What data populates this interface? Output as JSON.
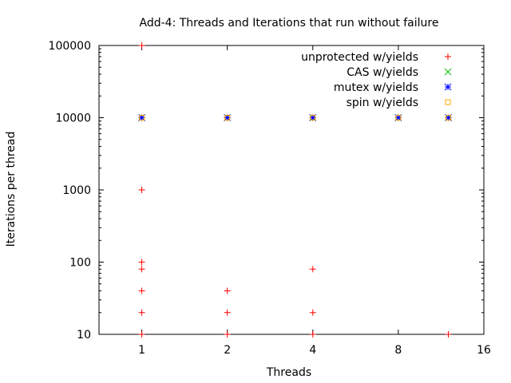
{
  "chart_data": {
    "type": "scatter",
    "title": "Add-4: Threads and Iterations that run without failure",
    "xlabel": "Threads",
    "ylabel": "Iterations per thread",
    "x_scale": "log2",
    "y_scale": "log10",
    "xlim": [
      0.707,
      16
    ],
    "ylim": [
      10,
      100000
    ],
    "x_ticks": [
      1,
      2,
      4,
      8,
      16
    ],
    "x_tick_labels": [
      "1",
      "2",
      "4",
      "8",
      "16"
    ],
    "y_ticks": [
      10,
      100,
      1000,
      10000,
      100000
    ],
    "y_tick_labels": [
      "10",
      "100",
      "1000",
      "10000",
      "100000"
    ],
    "grid": false,
    "legend_position": "top-right",
    "series": [
      {
        "name": "unprotected w/yields",
        "color": "#ff0000",
        "marker": "plus",
        "points": [
          {
            "x": 1,
            "y": 100000
          },
          {
            "x": 1,
            "y": 10000
          },
          {
            "x": 1,
            "y": 1000
          },
          {
            "x": 1,
            "y": 100
          },
          {
            "x": 1,
            "y": 80
          },
          {
            "x": 1,
            "y": 40
          },
          {
            "x": 1,
            "y": 20
          },
          {
            "x": 1,
            "y": 10
          },
          {
            "x": 2,
            "y": 10000
          },
          {
            "x": 2,
            "y": 40
          },
          {
            "x": 2,
            "y": 20
          },
          {
            "x": 2,
            "y": 10
          },
          {
            "x": 4,
            "y": 10000
          },
          {
            "x": 4,
            "y": 80
          },
          {
            "x": 4,
            "y": 20
          },
          {
            "x": 4,
            "y": 10
          },
          {
            "x": 8,
            "y": 10000
          },
          {
            "x": 12,
            "y": 10000
          },
          {
            "x": 12,
            "y": 10
          }
        ]
      },
      {
        "name": "CAS w/yields",
        "color": "#00c000",
        "marker": "cross",
        "points": [
          {
            "x": 1,
            "y": 10000
          },
          {
            "x": 2,
            "y": 10000
          },
          {
            "x": 4,
            "y": 10000
          },
          {
            "x": 8,
            "y": 10000
          },
          {
            "x": 12,
            "y": 10000
          }
        ]
      },
      {
        "name": "mutex w/yields",
        "color": "#0000ff",
        "marker": "star",
        "points": [
          {
            "x": 1,
            "y": 10000
          },
          {
            "x": 2,
            "y": 10000
          },
          {
            "x": 4,
            "y": 10000
          },
          {
            "x": 8,
            "y": 10000
          },
          {
            "x": 12,
            "y": 10000
          }
        ]
      },
      {
        "name": "spin w/yields",
        "color": "#ffa500",
        "marker": "square",
        "points": [
          {
            "x": 1,
            "y": 10000
          },
          {
            "x": 2,
            "y": 10000
          },
          {
            "x": 4,
            "y": 10000
          },
          {
            "x": 8,
            "y": 10000
          },
          {
            "x": 12,
            "y": 10000
          }
        ]
      }
    ]
  }
}
